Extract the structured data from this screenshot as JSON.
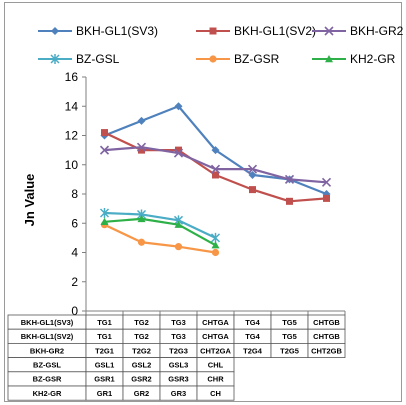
{
  "chart_data": {
    "type": "line",
    "ylabel": "Jn Value",
    "ylim": [
      0,
      16
    ],
    "yticks": [
      "0",
      "2",
      "4",
      "6",
      "8",
      "10",
      "12",
      "14",
      "16"
    ],
    "grid": false,
    "legend_position": "top",
    "series": [
      {
        "name": "BKH-GL1(SV3)",
        "color": "#4f81bd",
        "marker": "diamond",
        "values": [
          12,
          13,
          14,
          11,
          9.3,
          9,
          8
        ]
      },
      {
        "name": "BKH-GL1(SV2)",
        "color": "#c0504d",
        "marker": "square",
        "values": [
          12.2,
          11,
          11,
          9.3,
          8.3,
          7.5,
          7.7
        ]
      },
      {
        "name": "BKH-GR2",
        "color": "#8064a2",
        "marker": "x",
        "values": [
          11,
          11.2,
          10.8,
          9.7,
          9.7,
          9,
          8.8
        ]
      },
      {
        "name": "BZ-GSL",
        "color": "#4bacc6",
        "marker": "asterisk",
        "values": [
          6.7,
          6.6,
          6.2,
          5
        ]
      },
      {
        "name": "BZ-GSR",
        "color": "#f79646",
        "marker": "circle",
        "values": [
          5.9,
          4.7,
          4.4,
          4
        ]
      },
      {
        "name": "KH2-GR",
        "color": "#2eb048",
        "marker": "triangle",
        "values": [
          6.1,
          6.3,
          5.9,
          4.5
        ]
      }
    ],
    "table": [
      [
        "BKH-GL1(SV3)",
        "TG1",
        "TG2",
        "TG3",
        "CHTGA",
        "TG4",
        "TG5",
        "CHTGB"
      ],
      [
        "BKH-GL1(SV2)",
        "TG1",
        "TG2",
        "TG3",
        "CHTGA",
        "TG4",
        "TG5",
        "CHTGB"
      ],
      [
        "BKH-GR2",
        "T2G1",
        "T2G2",
        "T2G3",
        "CHT2GA",
        "T2G4",
        "T2G5",
        "CHT2GB"
      ],
      [
        "BZ-GSL",
        "GSL1",
        "GSL2",
        "GSL3",
        "CHL"
      ],
      [
        "BZ-GSR",
        "GSR1",
        "GSR2",
        "GSR3",
        "CHR"
      ],
      [
        "KH2-GR",
        "GR1",
        "GR2",
        "GR3",
        "CH"
      ]
    ]
  }
}
